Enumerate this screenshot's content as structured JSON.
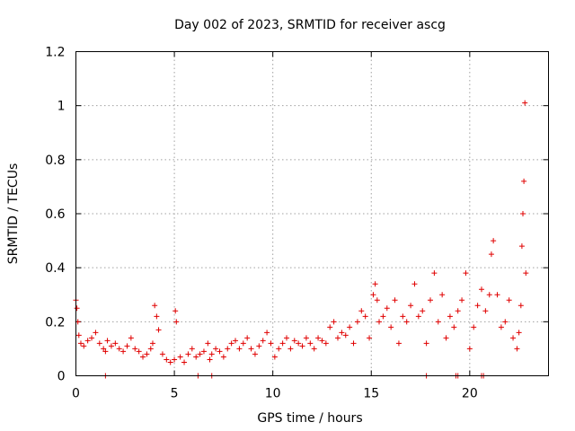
{
  "chart_data": {
    "type": "scatter",
    "title": "Day 002 of 2023, SRMTID for receiver ascg",
    "xlabel": "GPS time / hours",
    "ylabel": "SRMTID / TECUs",
    "xlim": [
      0,
      24
    ],
    "ylim": [
      0,
      1.2
    ],
    "xticks": [
      0,
      5,
      10,
      15,
      20
    ],
    "yticks": [
      0,
      0.2,
      0.4,
      0.6,
      0.8,
      1,
      1.2
    ],
    "xtick_labels": [
      "0",
      "5",
      "10",
      "15",
      "20"
    ],
    "ytick_labels": [
      "0",
      "0.2",
      "0.4",
      "0.6",
      "0.8",
      "1",
      "1.2"
    ],
    "grid": true,
    "marker": "+",
    "color": "#e00000",
    "series": [
      {
        "name": "ascg",
        "x": [
          0.0,
          0.05,
          0.1,
          0.15,
          0.25,
          0.4,
          0.6,
          0.8,
          1.0,
          1.2,
          1.4,
          1.5,
          1.6,
          1.8,
          2.0,
          2.2,
          2.4,
          2.6,
          2.8,
          3.0,
          3.2,
          3.4,
          3.6,
          3.8,
          3.9,
          4.0,
          4.1,
          4.2,
          4.4,
          4.6,
          4.8,
          5.0,
          5.05,
          5.1,
          5.3,
          5.5,
          5.7,
          5.9,
          6.1,
          6.3,
          6.5,
          6.7,
          6.8,
          6.9,
          7.1,
          7.3,
          7.5,
          7.7,
          7.9,
          8.1,
          8.3,
          8.5,
          8.7,
          8.9,
          9.1,
          9.3,
          9.5,
          9.7,
          9.9,
          10.1,
          10.3,
          10.5,
          10.7,
          10.9,
          11.1,
          11.3,
          11.5,
          11.7,
          11.9,
          12.1,
          12.3,
          12.5,
          12.7,
          12.9,
          13.1,
          13.3,
          13.5,
          13.7,
          13.9,
          14.1,
          14.3,
          14.5,
          14.7,
          14.9,
          15.1,
          15.2,
          15.3,
          15.4,
          15.6,
          15.8,
          16.0,
          16.2,
          16.4,
          16.6,
          16.8,
          17.0,
          17.2,
          17.4,
          17.6,
          17.8,
          18.0,
          18.2,
          18.4,
          18.6,
          18.8,
          19.0,
          19.2,
          19.4,
          19.6,
          19.8,
          20.0,
          20.2,
          20.4,
          20.6,
          20.8,
          21.0,
          21.1,
          21.2,
          21.4,
          21.6,
          21.8,
          22.0,
          22.2,
          22.4,
          22.5,
          22.6,
          22.65,
          22.7,
          22.75,
          22.8,
          22.85,
          1.5,
          6.2,
          6.9,
          17.8,
          19.3,
          19.4,
          20.6,
          20.7
        ],
        "y": [
          0.28,
          0.25,
          0.2,
          0.15,
          0.12,
          0.11,
          0.13,
          0.14,
          0.16,
          0.12,
          0.1,
          0.09,
          0.13,
          0.11,
          0.12,
          0.1,
          0.09,
          0.11,
          0.14,
          0.1,
          0.09,
          0.07,
          0.08,
          0.1,
          0.12,
          0.26,
          0.22,
          0.17,
          0.08,
          0.06,
          0.05,
          0.06,
          0.24,
          0.2,
          0.07,
          0.05,
          0.08,
          0.1,
          0.07,
          0.08,
          0.09,
          0.12,
          0.06,
          0.08,
          0.1,
          0.09,
          0.07,
          0.1,
          0.12,
          0.13,
          0.1,
          0.12,
          0.14,
          0.1,
          0.08,
          0.11,
          0.13,
          0.16,
          0.12,
          0.07,
          0.1,
          0.12,
          0.14,
          0.1,
          0.13,
          0.12,
          0.11,
          0.14,
          0.12,
          0.1,
          0.14,
          0.13,
          0.12,
          0.18,
          0.2,
          0.14,
          0.16,
          0.15,
          0.18,
          0.12,
          0.2,
          0.24,
          0.22,
          0.14,
          0.3,
          0.34,
          0.28,
          0.2,
          0.22,
          0.25,
          0.18,
          0.28,
          0.12,
          0.22,
          0.2,
          0.26,
          0.34,
          0.22,
          0.24,
          0.12,
          0.28,
          0.38,
          0.2,
          0.3,
          0.14,
          0.22,
          0.18,
          0.24,
          0.28,
          0.38,
          0.1,
          0.18,
          0.26,
          0.32,
          0.24,
          0.3,
          0.45,
          0.5,
          0.3,
          0.18,
          0.2,
          0.28,
          0.14,
          0.1,
          0.16,
          0.26,
          0.48,
          0.6,
          0.72,
          1.01,
          0.38,
          0.0,
          0.0,
          0.0,
          0.0,
          0.0,
          0.0,
          0.0,
          0.0
        ]
      }
    ]
  }
}
